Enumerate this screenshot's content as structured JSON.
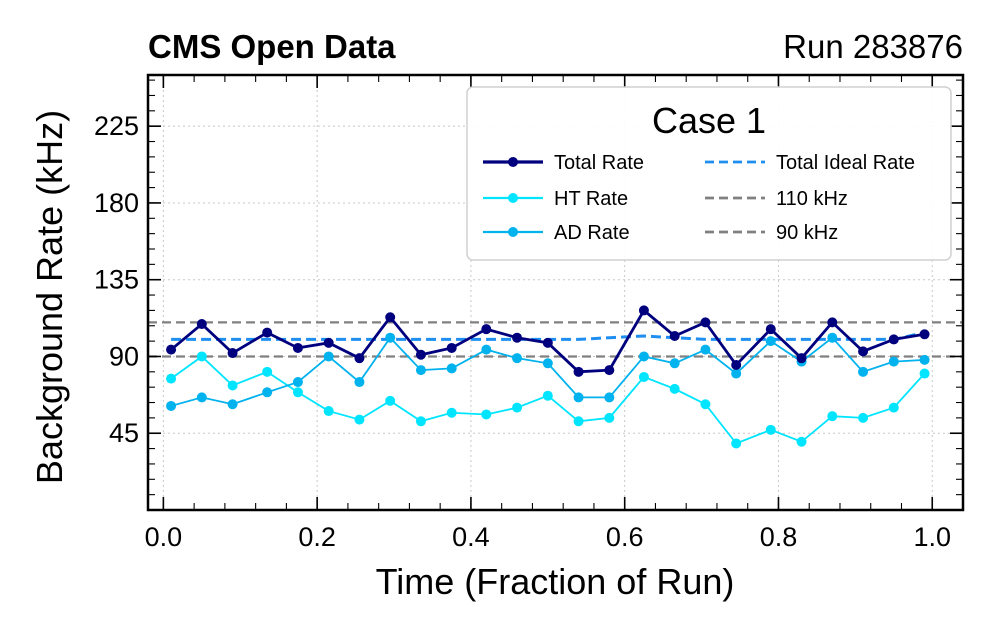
{
  "chart_data": {
    "type": "line",
    "header_left": "CMS Open Data",
    "header_right": "Run 283876",
    "xlabel": "Time (Fraction of Run)",
    "ylabel": "Background Rate (kHz)",
    "xlim": [
      -0.02,
      1.04
    ],
    "ylim": [
      0,
      255
    ],
    "xticks": [
      0.0,
      0.2,
      0.4,
      0.6,
      0.8,
      1.0
    ],
    "xtick_labels": [
      "0.0",
      "0.2",
      "0.4",
      "0.6",
      "0.8",
      "1.0"
    ],
    "yticks": [
      45,
      90,
      135,
      180,
      225
    ],
    "ytick_labels": [
      "45",
      "90",
      "135",
      "180",
      "225"
    ],
    "grid": true,
    "legend": {
      "title": "Case 1",
      "placement": "top-right",
      "entries": [
        "Total Rate",
        "HT Rate",
        "AD Rate",
        "Total Ideal Rate",
        "110 kHz",
        "90 kHz"
      ]
    },
    "x": [
      0.01,
      0.05,
      0.09,
      0.135,
      0.175,
      0.215,
      0.255,
      0.295,
      0.335,
      0.375,
      0.42,
      0.46,
      0.5,
      0.54,
      0.58,
      0.625,
      0.665,
      0.705,
      0.745,
      0.79,
      0.83,
      0.87,
      0.91,
      0.95,
      0.99
    ],
    "series": [
      {
        "name": "Total Rate",
        "color": "#00007f",
        "style": "solid-marker",
        "values": [
          94,
          109,
          92,
          104,
          95,
          98,
          89,
          113,
          91,
          95,
          106,
          101,
          98,
          81,
          82,
          117,
          102,
          110,
          85,
          106,
          89,
          110,
          93,
          100,
          103
        ]
      },
      {
        "name": "HT Rate",
        "color": "#00e5ff",
        "style": "solid-marker",
        "values": [
          77,
          90,
          73,
          81,
          69,
          58,
          53,
          64,
          52,
          57,
          56,
          60,
          67,
          52,
          54,
          78,
          71,
          62,
          39,
          47,
          40,
          55,
          54,
          60,
          80
        ]
      },
      {
        "name": "AD Rate",
        "color": "#00b2ee",
        "style": "solid-marker",
        "values": [
          61,
          66,
          62,
          69,
          75,
          90,
          75,
          101,
          82,
          83,
          94,
          89,
          86,
          66,
          66,
          90,
          86,
          94,
          80,
          99,
          87,
          101,
          81,
          87,
          88
        ]
      },
      {
        "name": "Total Ideal Rate",
        "color": "#1f8ef1",
        "style": "dashed",
        "values": [
          100,
          100,
          100,
          100,
          100,
          100,
          100,
          100,
          100,
          100,
          100,
          100,
          100,
          100,
          101,
          102,
          101,
          100,
          100,
          100,
          100,
          100,
          100,
          100,
          104
        ]
      }
    ],
    "reference_lines": [
      {
        "name": "110 kHz",
        "y": 110,
        "color": "#808080",
        "style": "dashed"
      },
      {
        "name": "90 kHz",
        "y": 90,
        "color": "#808080",
        "style": "dashed"
      }
    ]
  }
}
